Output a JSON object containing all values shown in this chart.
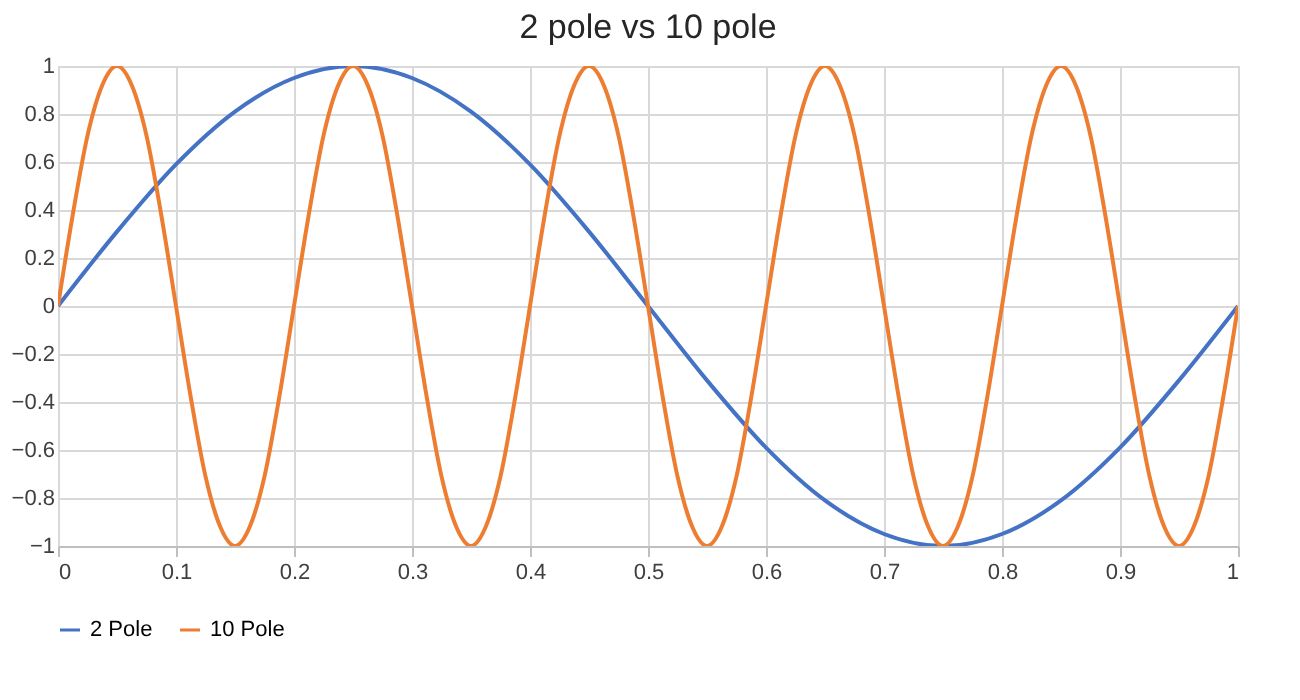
{
  "chart_data": {
    "type": "line",
    "title": "2 pole vs  10 pole",
    "xlim": [
      0,
      1
    ],
    "xticks": [
      0,
      0.1,
      0.2,
      0.3,
      0.4,
      0.5,
      0.6,
      0.7,
      0.8,
      0.9,
      1
    ],
    "ylim": [
      -1,
      1
    ],
    "yticks": [
      -1,
      -0.8,
      -0.6,
      -0.4,
      -0.2,
      0,
      0.2,
      0.4,
      0.6,
      0.8,
      1
    ],
    "grid": true,
    "legend": "bottom",
    "marker": "none",
    "line_style": "solid",
    "series": [
      {
        "name": "2 Pole",
        "color": "#4472c4",
        "x": [
          0,
          0.05,
          0.1,
          0.15,
          0.2,
          0.25,
          0.3,
          0.35,
          0.4,
          0.45,
          0.5,
          0.55,
          0.6,
          0.65,
          0.7,
          0.75,
          0.8,
          0.85,
          0.9,
          0.95,
          1
        ],
        "values": [
          0,
          0.31,
          0.59,
          0.81,
          0.95,
          1,
          0.95,
          0.81,
          0.59,
          0.31,
          0,
          -0.31,
          -0.59,
          -0.81,
          -0.95,
          -1,
          -0.95,
          -0.81,
          -0.59,
          -0.31,
          0
        ]
      },
      {
        "name": "10 Pole",
        "color": "#ed7d31",
        "x": [
          0,
          0.0125,
          0.025,
          0.0375,
          0.05,
          0.0625,
          0.075,
          0.0875,
          0.1,
          0.1125,
          0.125,
          0.1375,
          0.15,
          0.1625,
          0.175,
          0.1875,
          0.2,
          0.2125,
          0.225,
          0.2375,
          0.25,
          0.2625,
          0.275,
          0.2875,
          0.3,
          0.3125,
          0.325,
          0.3375,
          0.35,
          0.3625,
          0.375,
          0.3875,
          0.4,
          0.4125,
          0.425,
          0.4375,
          0.45,
          0.4625,
          0.475,
          0.4875,
          0.5,
          0.5125,
          0.525,
          0.5375,
          0.55,
          0.5625,
          0.575,
          0.5875,
          0.6,
          0.6125,
          0.625,
          0.6375,
          0.65,
          0.6625,
          0.675,
          0.6875,
          0.7,
          0.7125,
          0.725,
          0.7375,
          0.75,
          0.7625,
          0.775,
          0.7875,
          0.8,
          0.8125,
          0.825,
          0.8375,
          0.85,
          0.8625,
          0.875,
          0.8875,
          0.9,
          0.9125,
          0.925,
          0.9375,
          0.95,
          0.9625,
          0.975,
          0.9875,
          1
        ],
        "values": [
          0,
          0.38,
          0.71,
          0.92,
          1,
          0.92,
          0.71,
          0.38,
          0,
          -0.38,
          -0.71,
          -0.92,
          -1,
          -0.92,
          -0.71,
          -0.38,
          0,
          0.38,
          0.71,
          0.92,
          1,
          0.92,
          0.71,
          0.38,
          0,
          -0.38,
          -0.71,
          -0.92,
          -1,
          -0.92,
          -0.71,
          -0.38,
          0,
          0.38,
          0.71,
          0.92,
          1,
          0.92,
          0.71,
          0.38,
          0,
          -0.38,
          -0.71,
          -0.92,
          -1,
          -0.92,
          -0.71,
          -0.38,
          0,
          0.38,
          0.71,
          0.92,
          1,
          0.92,
          0.71,
          0.38,
          0,
          -0.38,
          -0.71,
          -0.92,
          -1,
          -0.92,
          -0.71,
          -0.38,
          0,
          0.38,
          0.71,
          0.92,
          1,
          0.92,
          0.71,
          0.38,
          0,
          -0.38,
          -0.71,
          -0.92,
          -1,
          -0.92,
          -0.71,
          -0.38,
          0
        ]
      }
    ]
  }
}
